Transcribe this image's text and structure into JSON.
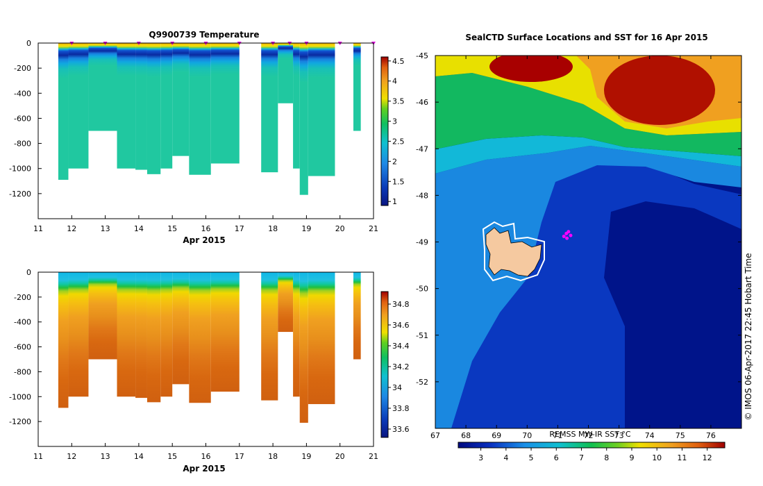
{
  "chart_data": [
    {
      "type": "heatmap",
      "title": "Q9900739  Temperature",
      "xlabel": "Apr 2015",
      "x_ticks": [
        11,
        12,
        13,
        14,
        15,
        16,
        17,
        18,
        19,
        20,
        21
      ],
      "xlim": [
        11,
        21
      ],
      "ylim": [
        -1400,
        0
      ],
      "y_ticks": [
        0,
        -200,
        -400,
        -600,
        -800,
        -1000,
        -1200
      ],
      "colorbar": {
        "ticks": [
          "4.5",
          "4",
          "3.5",
          "3",
          "2.5",
          "2",
          "1.5",
          "1"
        ],
        "range": [
          0.9,
          4.6
        ]
      },
      "surface_profile_markers_x": [
        12,
        13,
        14,
        15,
        16,
        17,
        18,
        18.5,
        19,
        20,
        21
      ],
      "profiles": [
        {
          "x0": 11.6,
          "x1": 11.9,
          "bottom": -1090
        },
        {
          "x0": 11.9,
          "x1": 12.5,
          "bottom": -1000
        },
        {
          "x0": 12.5,
          "x1": 13.35,
          "bottom": -700
        },
        {
          "x0": 13.35,
          "x1": 13.9,
          "bottom": -1000
        },
        {
          "x0": 13.9,
          "x1": 14.25,
          "bottom": -1010
        },
        {
          "x0": 14.25,
          "x1": 14.65,
          "bottom": -1045
        },
        {
          "x0": 14.65,
          "x1": 15.0,
          "bottom": -1000
        },
        {
          "x0": 15.0,
          "x1": 15.5,
          "bottom": -900
        },
        {
          "x0": 15.5,
          "x1": 16.15,
          "bottom": -1050
        },
        {
          "x0": 16.15,
          "x1": 17.0,
          "bottom": -960
        },
        {
          "x0": 17.65,
          "x1": 18.15,
          "bottom": -1030
        },
        {
          "x0": 18.15,
          "x1": 18.6,
          "bottom": -480
        },
        {
          "x0": 18.6,
          "x1": 18.8,
          "bottom": -1000
        },
        {
          "x0": 18.8,
          "x1": 19.05,
          "bottom": -1210
        },
        {
          "x0": 19.05,
          "x1": 19.85,
          "bottom": -1060
        },
        {
          "x0": 20.4,
          "x1": 20.62,
          "bottom": -700
        }
      ]
    },
    {
      "type": "heatmap",
      "title": "",
      "xlabel": "Apr 2015",
      "x_ticks": [
        11,
        12,
        13,
        14,
        15,
        16,
        17,
        18,
        19,
        20,
        21
      ],
      "xlim": [
        11,
        21
      ],
      "ylim": [
        -1400,
        0
      ],
      "y_ticks": [
        0,
        -200,
        -400,
        -600,
        -800,
        -1000,
        -1200
      ],
      "colorbar": {
        "ticks": [
          "34.8",
          "34.6",
          "34.4",
          "34.2",
          "34",
          "33.8",
          "33.6"
        ],
        "range": [
          33.52,
          34.92
        ]
      },
      "profiles": [
        {
          "x0": 11.6,
          "x1": 11.9,
          "bottom": -1090
        },
        {
          "x0": 11.9,
          "x1": 12.5,
          "bottom": -1000
        },
        {
          "x0": 12.5,
          "x1": 13.35,
          "bottom": -700
        },
        {
          "x0": 13.35,
          "x1": 13.9,
          "bottom": -1000
        },
        {
          "x0": 13.9,
          "x1": 14.25,
          "bottom": -1010
        },
        {
          "x0": 14.25,
          "x1": 14.65,
          "bottom": -1045
        },
        {
          "x0": 14.65,
          "x1": 15.0,
          "bottom": -1000
        },
        {
          "x0": 15.0,
          "x1": 15.5,
          "bottom": -900
        },
        {
          "x0": 15.5,
          "x1": 16.15,
          "bottom": -1050
        },
        {
          "x0": 16.15,
          "x1": 17.0,
          "bottom": -960
        },
        {
          "x0": 17.65,
          "x1": 18.15,
          "bottom": -1030
        },
        {
          "x0": 18.15,
          "x1": 18.6,
          "bottom": -480
        },
        {
          "x0": 18.6,
          "x1": 18.8,
          "bottom": -1000
        },
        {
          "x0": 18.8,
          "x1": 19.05,
          "bottom": -1210
        },
        {
          "x0": 19.05,
          "x1": 19.85,
          "bottom": -1060
        },
        {
          "x0": 20.4,
          "x1": 20.62,
          "bottom": -700
        }
      ]
    },
    {
      "type": "heatmap",
      "title": "SealCTD Surface Locations and SST for 16 Apr 2015",
      "x_ticks": [
        67,
        68,
        69,
        70,
        71,
        72,
        73,
        74,
        75,
        76
      ],
      "xlim": [
        67,
        77
      ],
      "y_ticks": [
        -45,
        -46,
        -47,
        -48,
        -49,
        -50,
        -51,
        -52
      ],
      "ylim": [
        -53,
        -45
      ],
      "colorbar_label": "REMSS MW-IR SST °C",
      "colorbar_ticks": [
        "3",
        "4",
        "5",
        "6",
        "7",
        "8",
        "9",
        "10",
        "11",
        "12"
      ],
      "colorbar_range": [
        2.1,
        12.7
      ],
      "seal_positions": [
        [
          71.2,
          -48.88
        ],
        [
          71.28,
          -48.82
        ],
        [
          71.35,
          -48.78
        ],
        [
          71.42,
          -48.86
        ],
        [
          71.3,
          -48.92
        ]
      ],
      "credit": "© IMOS 06-Apr-2017 22:45 Hobart Time"
    }
  ]
}
